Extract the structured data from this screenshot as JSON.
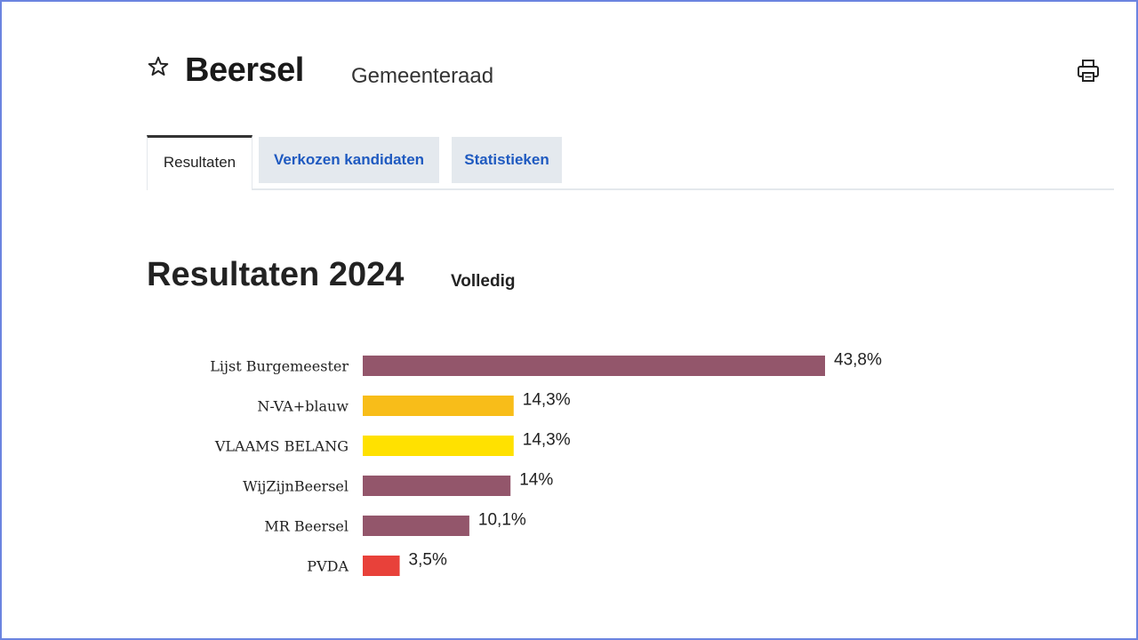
{
  "header": {
    "title": "Beersel",
    "subtitle": "Gemeenteraad"
  },
  "icons": {
    "favorite": "star-outline-icon",
    "print": "printer-icon"
  },
  "tabs": [
    {
      "label": "Resultaten",
      "active": true
    },
    {
      "label": "Verkozen kandidaten",
      "active": false
    },
    {
      "label": "Statistieken",
      "active": false
    }
  ],
  "section": {
    "title": "Resultaten 2024",
    "status": "Volledig"
  },
  "chart_data": {
    "type": "bar",
    "orientation": "horizontal",
    "categories": [
      "Lijst Burgemeester",
      "N-VA+blauw",
      "VLAAMS BELANG",
      "WijZijnBeersel",
      "MR Beersel",
      "PVDA"
    ],
    "values": [
      43.8,
      14.3,
      14.3,
      14.0,
      10.1,
      3.5
    ],
    "value_labels": [
      "43,8%",
      "14,3%",
      "14,3%",
      "14%",
      "10,1%",
      "3,5%"
    ],
    "colors": [
      "#93566b",
      "#f8bd19",
      "#ffe100",
      "#93566b",
      "#93566b",
      "#e8413a"
    ],
    "unit": "%",
    "xlim": [
      0,
      43.8
    ]
  }
}
